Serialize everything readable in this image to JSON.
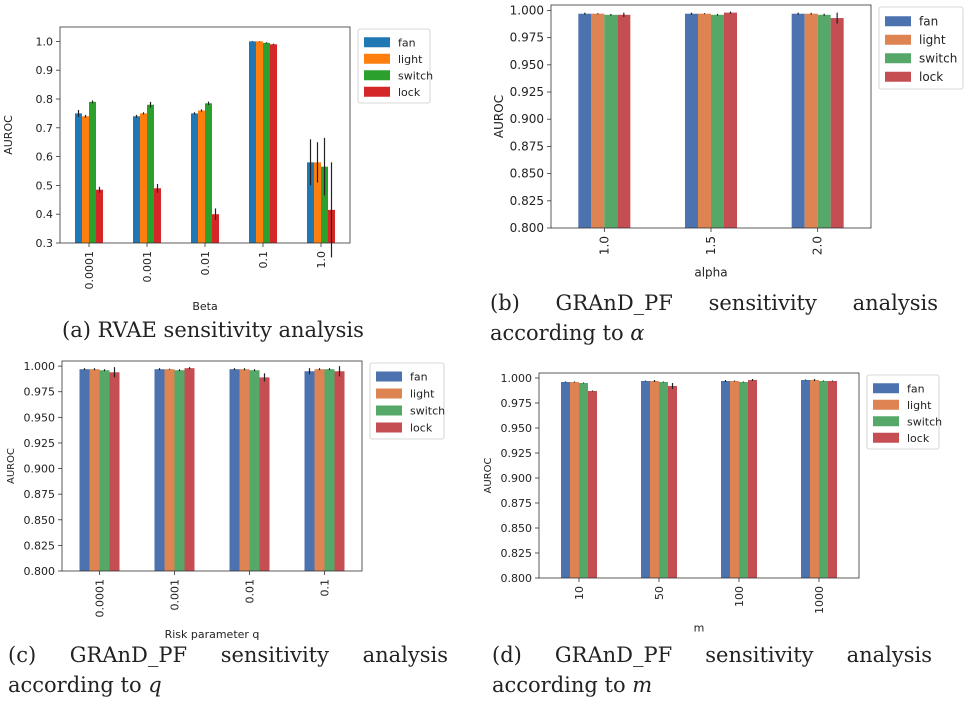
{
  "captions": {
    "a": {
      "text": "(a) RVAE sensitivity analysis",
      "var": ""
    },
    "b": {
      "text": "(b) GRAnD_PF sensitivity analysis according to ",
      "var": "α"
    },
    "c": {
      "text": "(c) GRAnD_PF sensitivity analysis according to ",
      "var": "q"
    },
    "d": {
      "text": "(d) GRAnD_PF sensitivity analysis according to ",
      "var": "m"
    }
  },
  "chart_data": [
    {
      "id": "a",
      "type": "bar",
      "xlabel": "Beta",
      "ylabel": "AUROC",
      "ylim": [
        0.3,
        1.05
      ],
      "yticks": [
        0.3,
        0.4,
        0.5,
        0.6,
        0.7,
        0.8,
        0.9,
        1.0
      ],
      "ytick_labels": [
        "0.3",
        "0.4",
        "0.5",
        "0.6",
        "0.7",
        "0.8",
        "0.9",
        "1.0"
      ],
      "categories": [
        "0.0001",
        "0.001",
        "0.01",
        "0.1",
        "1.0"
      ],
      "legend_position": "top-right",
      "grid": false,
      "colors": [
        "#1f77b4",
        "#ff7f0e",
        "#2ca02c",
        "#d62728"
      ],
      "series": [
        {
          "name": "fan",
          "values": [
            0.75,
            0.74,
            0.75,
            1.0,
            0.58
          ],
          "err": [
            0.012,
            0.005,
            0.004,
            0.001,
            0.08
          ]
        },
        {
          "name": "light",
          "values": [
            0.74,
            0.75,
            0.76,
            1.0,
            0.58
          ],
          "err": [
            0.005,
            0.004,
            0.004,
            0.001,
            0.07
          ]
        },
        {
          "name": "switch",
          "values": [
            0.79,
            0.78,
            0.785,
            0.995,
            0.565
          ],
          "err": [
            0.005,
            0.01,
            0.006,
            0.002,
            0.1
          ]
        },
        {
          "name": "lock",
          "values": [
            0.485,
            0.49,
            0.4,
            0.99,
            0.415
          ],
          "err": [
            0.01,
            0.015,
            0.02,
            0.002,
            0.165
          ]
        }
      ]
    },
    {
      "id": "b",
      "type": "bar",
      "xlabel": "alpha",
      "ylabel": "AUROC",
      "ylim": [
        0.8,
        1.005
      ],
      "yticks": [
        0.8,
        0.825,
        0.85,
        0.875,
        0.9,
        0.925,
        0.95,
        0.975,
        1.0
      ],
      "ytick_labels": [
        "0.800",
        "0.825",
        "0.850",
        "0.875",
        "0.900",
        "0.925",
        "0.950",
        "0.975",
        "1.000"
      ],
      "categories": [
        "1.0",
        "1.5",
        "2.0"
      ],
      "legend_position": "outside-right",
      "grid": false,
      "colors": [
        "#4c72b0",
        "#dd8452",
        "#55a868",
        "#c44e52"
      ],
      "series": [
        {
          "name": "fan",
          "values": [
            0.997,
            0.997,
            0.997
          ],
          "err": [
            0.001,
            0.001,
            0.001
          ]
        },
        {
          "name": "light",
          "values": [
            0.997,
            0.997,
            0.997
          ],
          "err": [
            0.0005,
            0.0005,
            0.0008
          ]
        },
        {
          "name": "switch",
          "values": [
            0.996,
            0.996,
            0.996
          ],
          "err": [
            0.0008,
            0.0008,
            0.001
          ]
        },
        {
          "name": "lock",
          "values": [
            0.996,
            0.998,
            0.993
          ],
          "err": [
            0.002,
            0.001,
            0.005
          ]
        }
      ]
    },
    {
      "id": "c",
      "type": "bar",
      "xlabel": "Risk parameter q",
      "ylabel": "AUROC",
      "ylim": [
        0.8,
        1.005
      ],
      "yticks": [
        0.8,
        0.825,
        0.85,
        0.875,
        0.9,
        0.925,
        0.95,
        0.975,
        1.0
      ],
      "ytick_labels": [
        "0.800",
        "0.825",
        "0.850",
        "0.875",
        "0.900",
        "0.925",
        "0.950",
        "0.975",
        "1.000"
      ],
      "categories": [
        "0.0001",
        "0.001",
        "0.01",
        "0.1"
      ],
      "legend_position": "outside-right",
      "grid": false,
      "colors": [
        "#4c72b0",
        "#dd8452",
        "#55a868",
        "#c44e52"
      ],
      "series": [
        {
          "name": "fan",
          "values": [
            0.997,
            0.997,
            0.997,
            0.995
          ],
          "err": [
            0.001,
            0.001,
            0.001,
            0.003
          ]
        },
        {
          "name": "light",
          "values": [
            0.997,
            0.997,
            0.997,
            0.997
          ],
          "err": [
            0.001,
            0.0005,
            0.001,
            0.001
          ]
        },
        {
          "name": "switch",
          "values": [
            0.996,
            0.996,
            0.996,
            0.997
          ],
          "err": [
            0.001,
            0.001,
            0.001,
            0.001
          ]
        },
        {
          "name": "lock",
          "values": [
            0.994,
            0.998,
            0.989,
            0.995
          ],
          "err": [
            0.005,
            0.001,
            0.004,
            0.005
          ]
        }
      ]
    },
    {
      "id": "d",
      "type": "bar",
      "xlabel": "m",
      "ylabel": "AUROC",
      "ylim": [
        0.8,
        1.005
      ],
      "yticks": [
        0.8,
        0.825,
        0.85,
        0.875,
        0.9,
        0.925,
        0.95,
        0.975,
        1.0
      ],
      "ytick_labels": [
        "0.800",
        "0.825",
        "0.850",
        "0.875",
        "0.900",
        "0.925",
        "0.950",
        "0.975",
        "1.000"
      ],
      "categories": [
        "10",
        "50",
        "100",
        "1000"
      ],
      "legend_position": "outside-right",
      "grid": false,
      "colors": [
        "#4c72b0",
        "#dd8452",
        "#55a868",
        "#c44e52"
      ],
      "series": [
        {
          "name": "fan",
          "values": [
            0.996,
            0.997,
            0.997,
            0.998
          ],
          "err": [
            0.0005,
            0.0005,
            0.001,
            0.0005
          ]
        },
        {
          "name": "light",
          "values": [
            0.996,
            0.997,
            0.997,
            0.998
          ],
          "err": [
            0.0005,
            0.001,
            0.0005,
            0.001
          ]
        },
        {
          "name": "switch",
          "values": [
            0.995,
            0.996,
            0.996,
            0.997
          ],
          "err": [
            0.0005,
            0.0005,
            0.0005,
            0.0005
          ]
        },
        {
          "name": "lock",
          "values": [
            0.987,
            0.992,
            0.998,
            0.997
          ],
          "err": [
            0.0005,
            0.003,
            0.001,
            0.0005
          ]
        }
      ]
    }
  ]
}
